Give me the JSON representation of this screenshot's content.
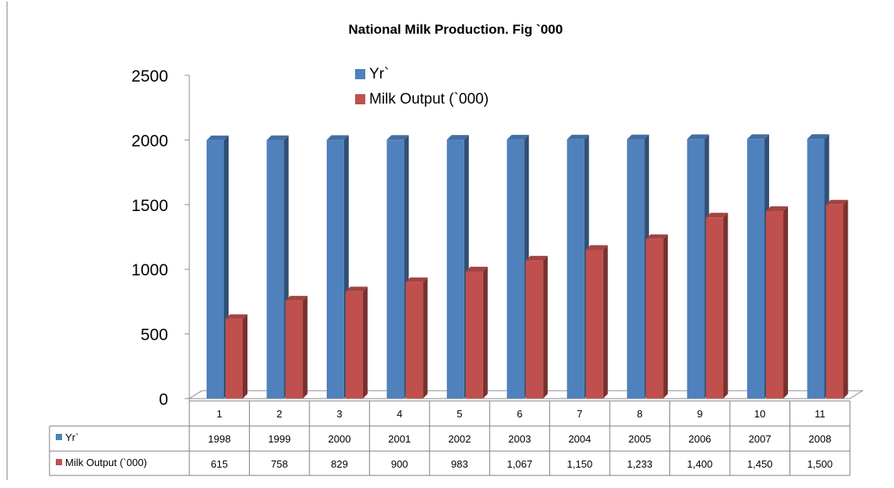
{
  "chart_data": {
    "type": "bar",
    "title": "National Milk Production. Fig  `000",
    "categories": [
      "1",
      "2",
      "3",
      "4",
      "5",
      "6",
      "7",
      "8",
      "9",
      "10",
      "11"
    ],
    "series": [
      {
        "name": "Yr`",
        "color": "#4F81BD",
        "values": [
          1998,
          1999,
          2000,
          2001,
          2002,
          2003,
          2004,
          2005,
          2006,
          2007,
          2008
        ],
        "table_labels": [
          "1998",
          "1999",
          "2000",
          "2001",
          "2002",
          "2003",
          "2004",
          "2005",
          "2006",
          "2007",
          "2008"
        ]
      },
      {
        "name": "Milk Output (`000)",
        "color": "#C0504D",
        "values": [
          615,
          758,
          829,
          900,
          983,
          1067,
          1150,
          1233,
          1400,
          1450,
          1500
        ],
        "table_labels": [
          "615",
          "758",
          "829",
          "900",
          "983",
          "1,067",
          "1,150",
          "1,233",
          "1,400",
          "1,450",
          "1,500"
        ]
      }
    ],
    "ylim": [
      0,
      2500
    ],
    "yticks": [
      "0",
      "500",
      "1000",
      "1500",
      "2000",
      "2500"
    ],
    "grid": false,
    "legend": "top-center",
    "data_table": true
  }
}
